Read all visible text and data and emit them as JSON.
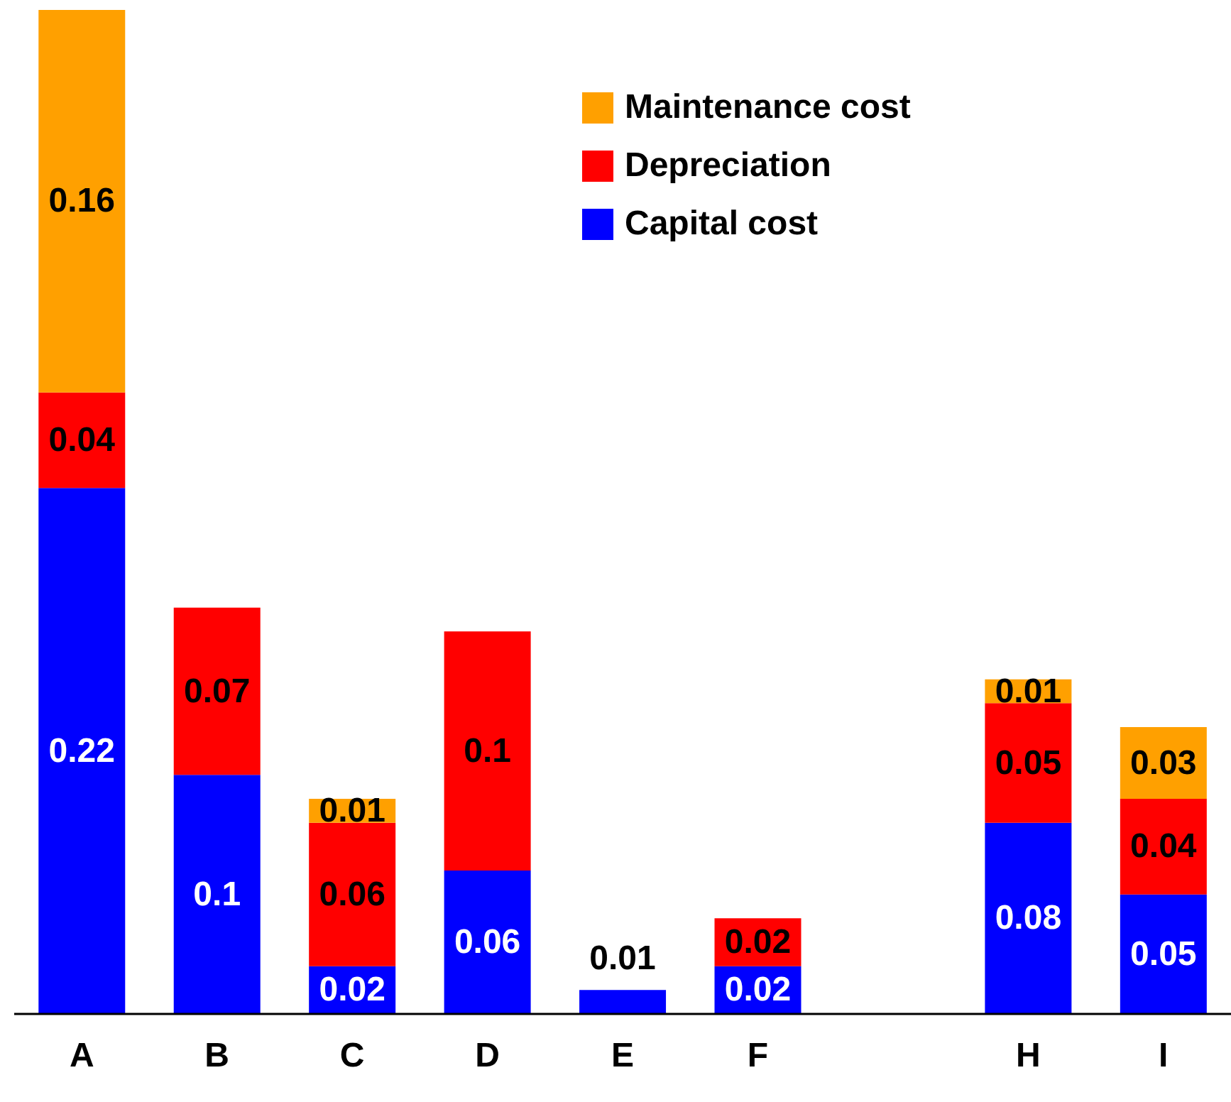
{
  "chart_data": {
    "type": "bar",
    "stacked": true,
    "data_labels": true,
    "legend": "top right",
    "grid": false,
    "categories": [
      "A",
      "B",
      "C",
      "D",
      "E",
      "F",
      null,
      "H",
      "I"
    ],
    "series": [
      {
        "name": "Capital cost",
        "color": "#0000ff",
        "values": [
          0.22,
          0.1,
          0.02,
          0.06,
          0.01,
          0.02,
          null,
          0.08,
          0.05
        ]
      },
      {
        "name": "Depreciation",
        "color": "#ff0000",
        "values": [
          0.04,
          0.07,
          0.06,
          0.1,
          null,
          0.02,
          null,
          0.05,
          0.04
        ]
      },
      {
        "name": "Maintenance cost",
        "color": "#ffa000",
        "values": [
          0.16,
          null,
          0.01,
          null,
          null,
          null,
          null,
          0.01,
          0.03
        ]
      }
    ]
  }
}
